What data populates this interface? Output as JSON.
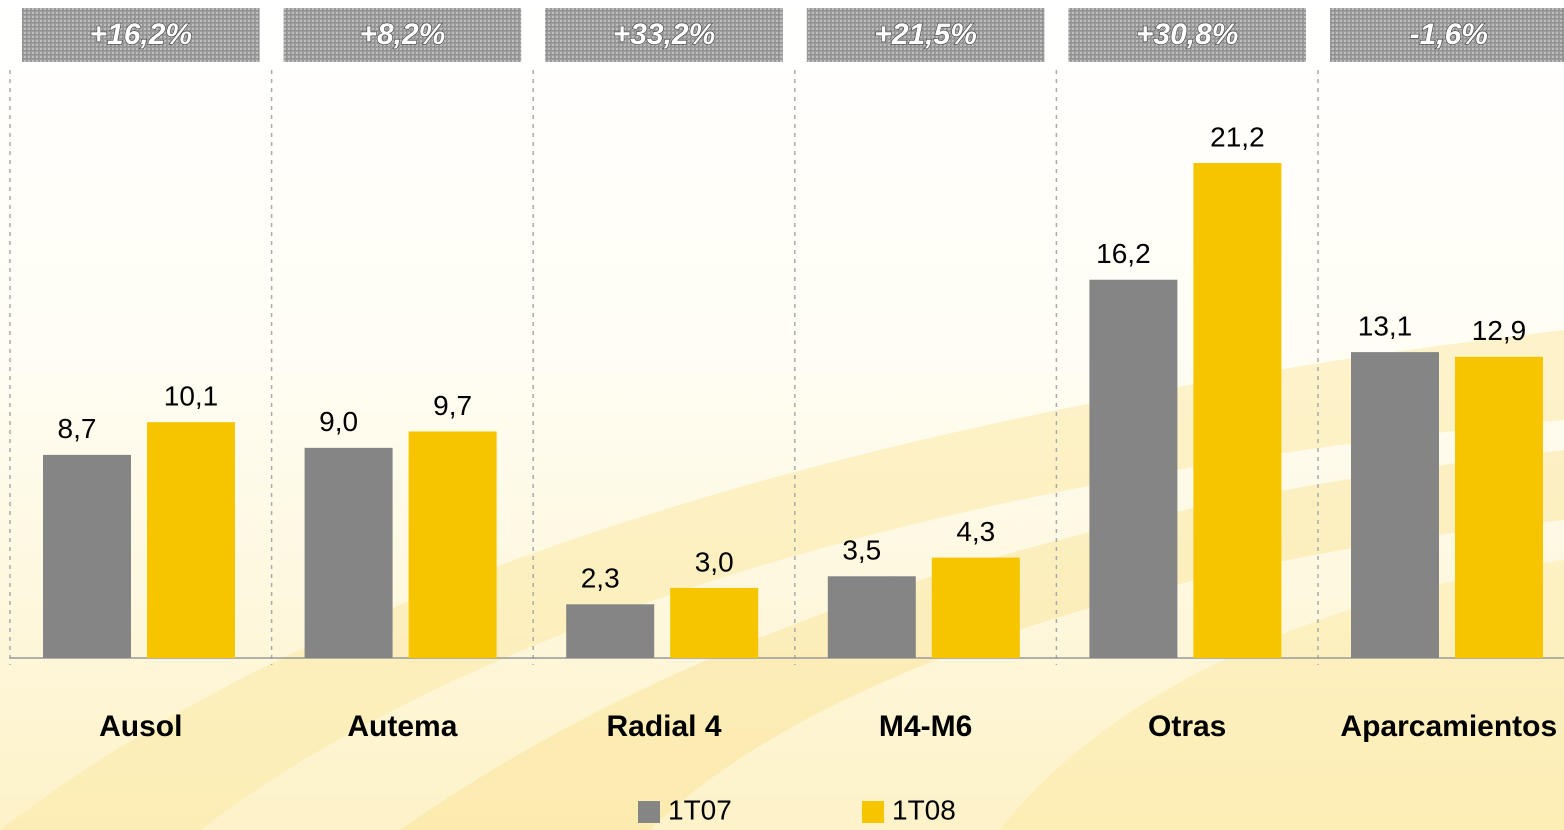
{
  "chart_data": {
    "type": "bar",
    "categories": [
      "Ausol",
      "Autema",
      "Radial 4",
      "M4-M6",
      "Otras",
      "Aparcamientos"
    ],
    "series": [
      {
        "name": "1T07",
        "color": "#858585",
        "values": [
          8.7,
          9.0,
          2.3,
          3.5,
          16.2,
          13.1
        ],
        "value_labels": [
          "8,7",
          "9,0",
          "2,3",
          "3,5",
          "16,2",
          "13,1"
        ]
      },
      {
        "name": "1T08",
        "color": "#f7c400",
        "values": [
          10.1,
          9.7,
          3.0,
          4.3,
          21.2,
          12.9
        ],
        "value_labels": [
          "10,1",
          "9,7",
          "3,0",
          "4,3",
          "21,2",
          "12,9"
        ]
      }
    ],
    "annotations": [
      "+16,2%",
      "+8,2%",
      "+33,2%",
      "+21,5%",
      "+30,8%",
      "-1,6%"
    ],
    "ylim": [
      0,
      24
    ]
  }
}
